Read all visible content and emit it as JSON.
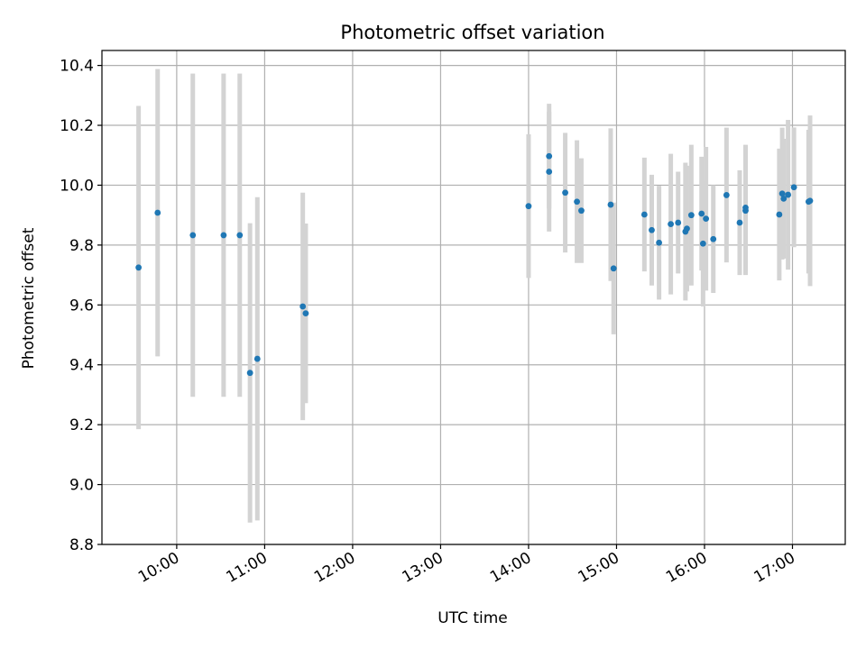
{
  "chart_data": {
    "type": "scatter",
    "title": "Photometric offset variation",
    "xlabel": "UTC time",
    "ylabel": "Photometric offset",
    "xlim": [
      "09:09",
      "17:36"
    ],
    "ylim": [
      8.8,
      10.45
    ],
    "x_ticks": [
      "10:00",
      "11:00",
      "12:00",
      "13:00",
      "14:00",
      "15:00",
      "16:00",
      "17:00"
    ],
    "y_ticks": [
      "8.8",
      "9.0",
      "9.2",
      "9.4",
      "9.6",
      "9.8",
      "10.0",
      "10.2",
      "10.4"
    ],
    "grid": true,
    "point_color": "#1f77b4",
    "errorbar_color": "#d3d3d3",
    "points": [
      {
        "time": "09:34",
        "value": 9.725,
        "err": 0.54
      },
      {
        "time": "09:47",
        "value": 9.908,
        "err": 0.48
      },
      {
        "time": "10:11",
        "value": 9.833,
        "err": 0.54
      },
      {
        "time": "10:32",
        "value": 9.833,
        "err": 0.54
      },
      {
        "time": "10:43",
        "value": 9.833,
        "err": 0.54
      },
      {
        "time": "10:50",
        "value": 9.373,
        "err": 0.5
      },
      {
        "time": "10:55",
        "value": 9.42,
        "err": 0.54
      },
      {
        "time": "11:26",
        "value": 9.595,
        "err": 0.38
      },
      {
        "time": "11:28",
        "value": 9.572,
        "err": 0.3
      },
      {
        "time": "14:00",
        "value": 9.93,
        "err": 0.24
      },
      {
        "time": "14:14",
        "value": 10.097,
        "err": 0.175
      },
      {
        "time": "14:14",
        "value": 10.045,
        "err": 0.2
      },
      {
        "time": "14:25",
        "value": 9.975,
        "err": 0.2
      },
      {
        "time": "14:33",
        "value": 9.945,
        "err": 0.205
      },
      {
        "time": "14:36",
        "value": 9.915,
        "err": 0.175
      },
      {
        "time": "14:56",
        "value": 9.935,
        "err": 0.255
      },
      {
        "time": "14:58",
        "value": 9.722,
        "err": 0.22
      },
      {
        "time": "15:19",
        "value": 9.902,
        "err": 0.19
      },
      {
        "time": "15:24",
        "value": 9.85,
        "err": 0.185
      },
      {
        "time": "15:29",
        "value": 9.808,
        "err": 0.19
      },
      {
        "time": "15:37",
        "value": 9.87,
        "err": 0.235
      },
      {
        "time": "15:42",
        "value": 9.875,
        "err": 0.17
      },
      {
        "time": "15:47",
        "value": 9.845,
        "err": 0.23
      },
      {
        "time": "15:48",
        "value": 9.855,
        "err": 0.21
      },
      {
        "time": "15:51",
        "value": 9.9,
        "err": 0.235
      },
      {
        "time": "15:58",
        "value": 9.905,
        "err": 0.19
      },
      {
        "time": "15:59",
        "value": 9.805,
        "err": 0.21
      },
      {
        "time": "16:01",
        "value": 9.888,
        "err": 0.24
      },
      {
        "time": "16:06",
        "value": 9.82,
        "err": 0.18
      },
      {
        "time": "16:15",
        "value": 9.967,
        "err": 0.225
      },
      {
        "time": "16:24",
        "value": 9.875,
        "err": 0.175
      },
      {
        "time": "16:28",
        "value": 9.915,
        "err": 0.215
      },
      {
        "time": "16:28",
        "value": 9.925,
        "err": 0.21
      },
      {
        "time": "16:51",
        "value": 9.902,
        "err": 0.22
      },
      {
        "time": "16:53",
        "value": 9.972,
        "err": 0.22
      },
      {
        "time": "16:54",
        "value": 9.955,
        "err": 0.2
      },
      {
        "time": "16:57",
        "value": 9.968,
        "err": 0.25
      },
      {
        "time": "17:01",
        "value": 9.993,
        "err": 0.2
      },
      {
        "time": "17:11",
        "value": 9.945,
        "err": 0.24
      },
      {
        "time": "17:12",
        "value": 9.948,
        "err": 0.285
      }
    ]
  }
}
